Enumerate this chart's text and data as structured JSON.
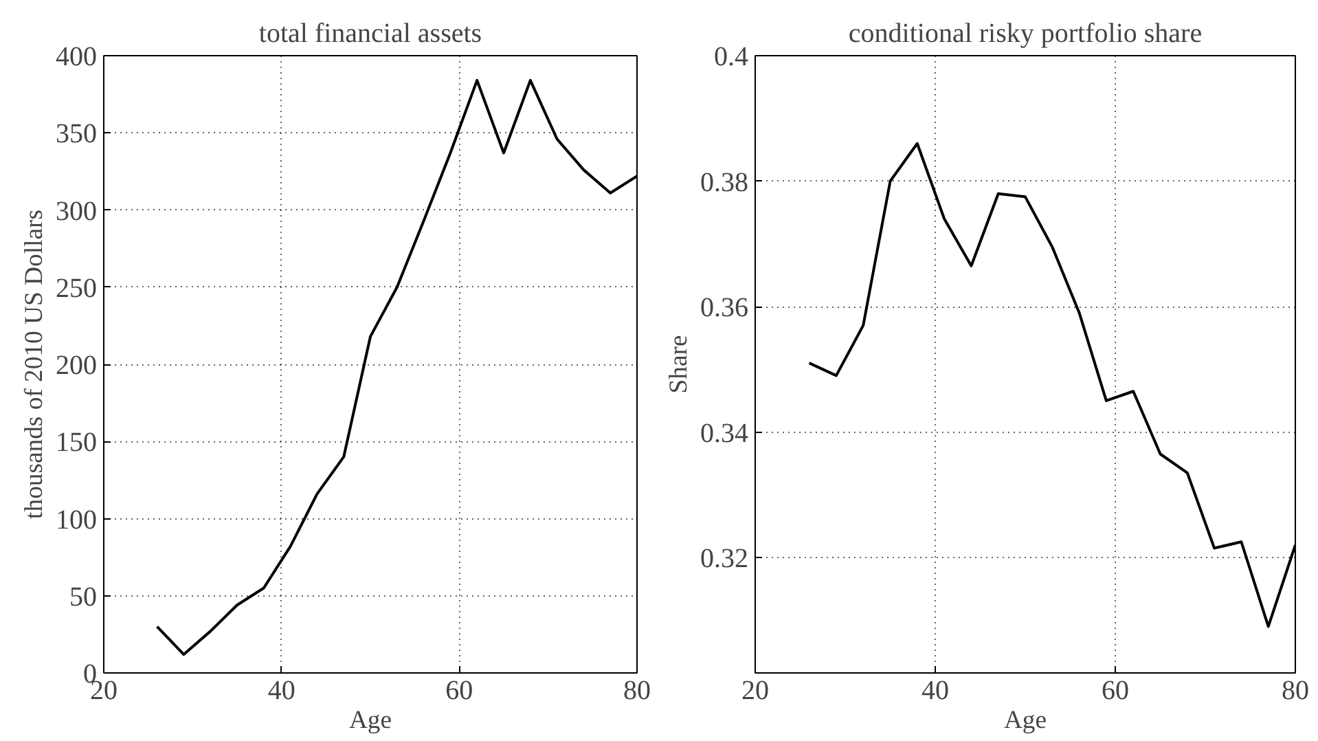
{
  "chart_data": [
    {
      "type": "line",
      "title": "total financial assets",
      "xlabel": "Age",
      "ylabel": "thousands of 2010 US Dollars",
      "x": [
        26,
        29,
        32,
        35,
        38,
        41,
        44,
        47,
        50,
        53,
        56,
        59,
        62,
        65,
        68,
        71,
        74,
        77,
        80
      ],
      "series": [
        {
          "color": "#000000",
          "values": [
            30,
            12,
            27,
            44,
            55,
            82,
            116,
            140,
            218,
            250,
            293,
            337,
            384,
            337,
            384,
            346,
            326,
            311,
            322
          ]
        }
      ],
      "xlim": [
        20,
        80
      ],
      "xticks": [
        20,
        40,
        60,
        80
      ],
      "ylim": [
        0,
        400
      ],
      "yticks": [
        0,
        50,
        100,
        150,
        200,
        250,
        300,
        350,
        400
      ],
      "grid": true,
      "line_style": "solid"
    },
    {
      "type": "line",
      "title": "conditional risky portfolio share",
      "xlabel": "Age",
      "ylabel": "Share",
      "x": [
        26,
        29,
        32,
        35,
        38,
        41,
        44,
        47,
        50,
        53,
        56,
        59,
        62,
        65,
        68,
        71,
        74,
        77,
        80
      ],
      "series": [
        {
          "color": "#000000",
          "values": [
            0.351,
            0.349,
            0.357,
            0.38,
            0.386,
            0.374,
            0.3665,
            0.378,
            0.3775,
            0.3695,
            0.359,
            0.345,
            0.3465,
            0.3365,
            0.3335,
            0.3215,
            0.3225,
            0.309,
            0.322
          ]
        }
      ],
      "xlim": [
        20,
        80
      ],
      "xticks": [
        20,
        40,
        60,
        80
      ],
      "ylim": [
        0.3016,
        0.4
      ],
      "yticks": [
        0.32,
        0.34,
        0.36,
        0.38,
        0.4
      ],
      "grid": true,
      "line_style": "solid"
    }
  ]
}
